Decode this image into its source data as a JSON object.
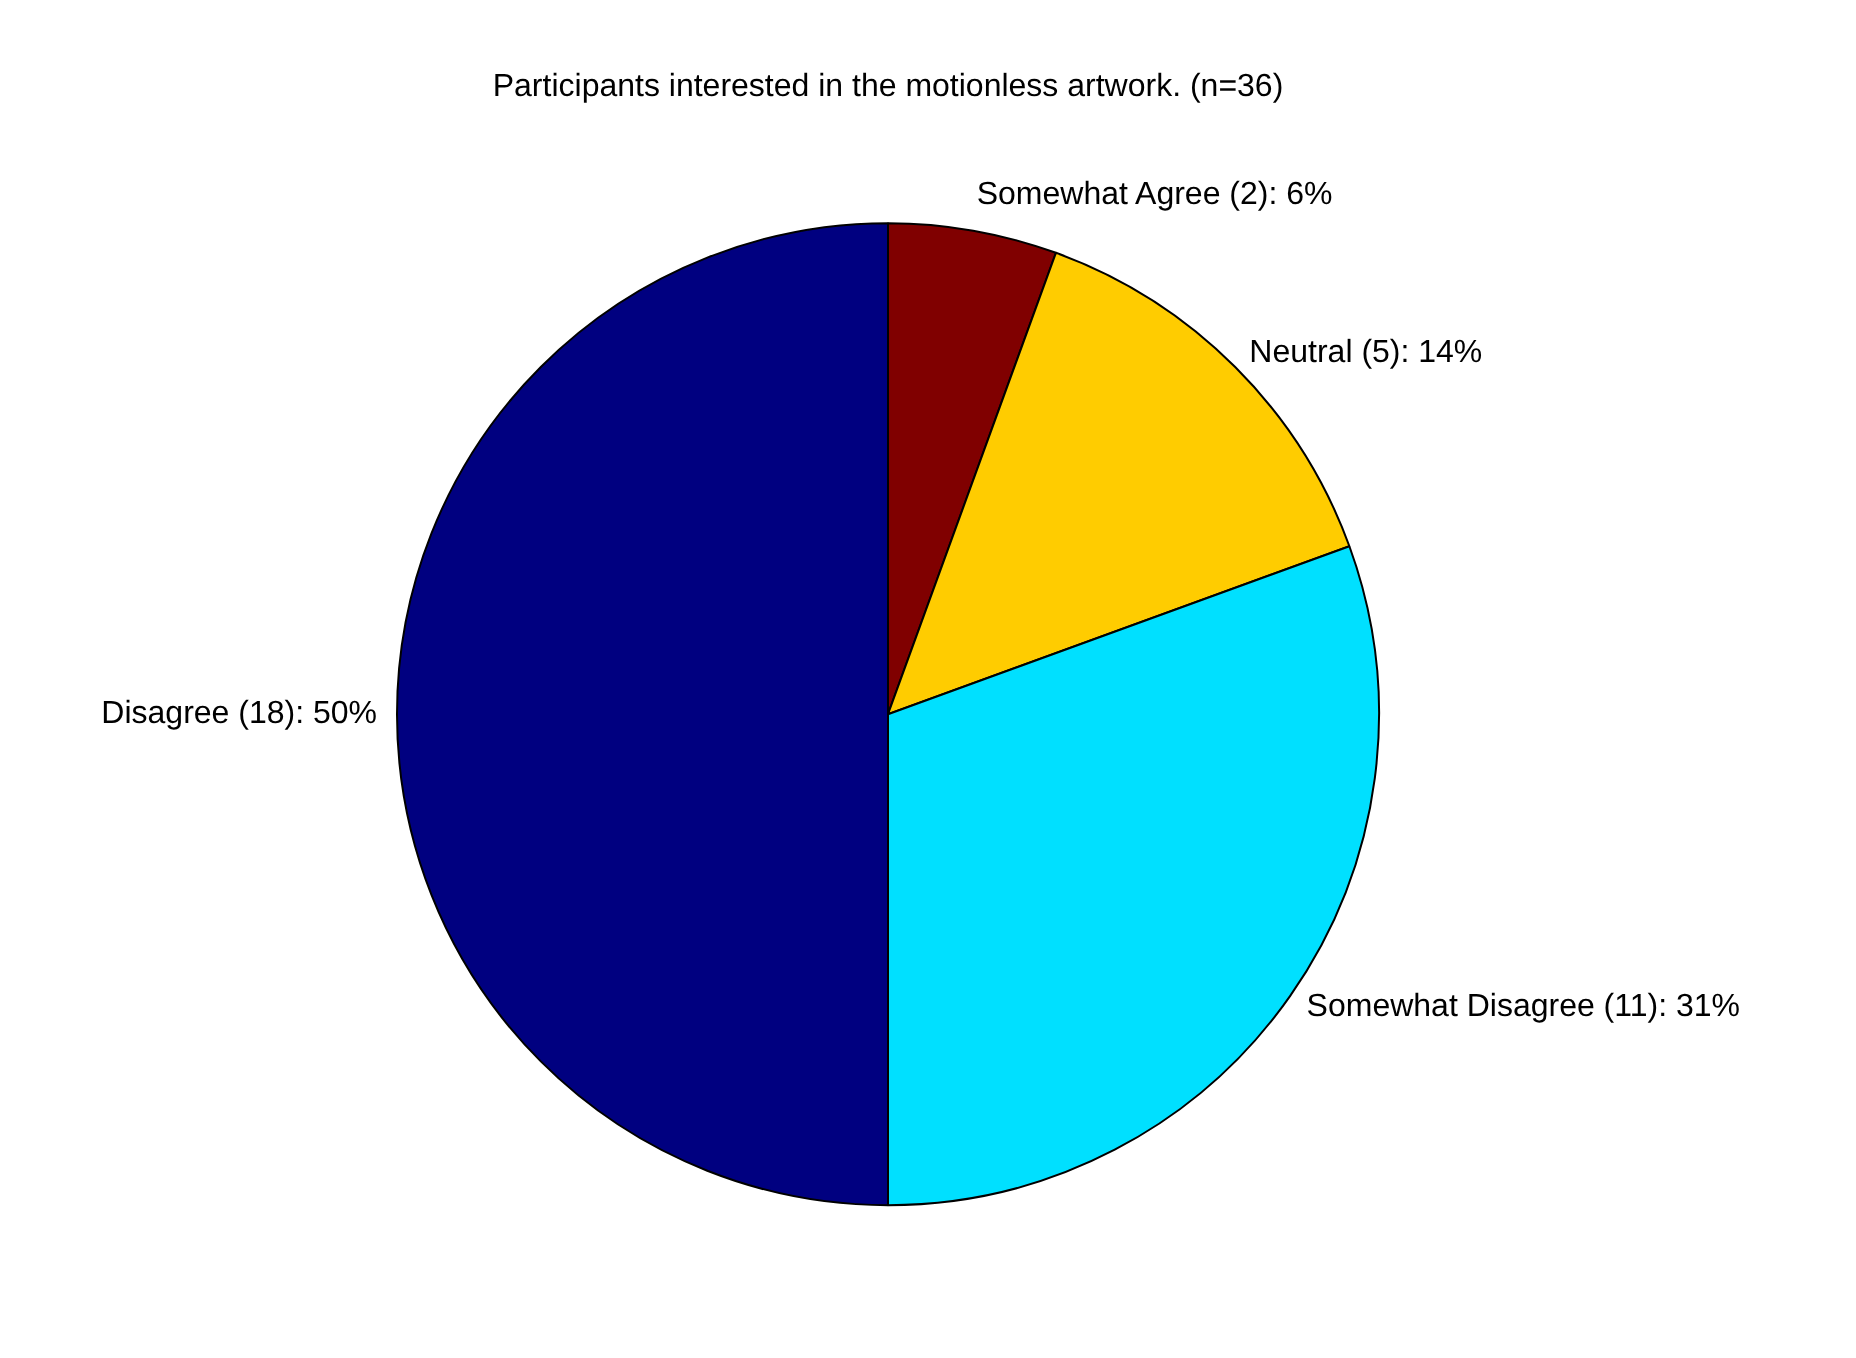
{
  "chart_data": {
    "type": "pie",
    "title": "Participants interested in the motionless artwork. (n=36)",
    "categories": [
      "Somewhat Agree",
      "Neutral",
      "Somewhat Disagree",
      "Disagree"
    ],
    "values": [
      2,
      5,
      11,
      18
    ],
    "value_labels": [
      "(2): 6%",
      "(5): 14%",
      "(11): 31%",
      "(18): 50%"
    ],
    "colors": [
      "#800000",
      "#ffcc00",
      "#00e0ff",
      "#000080"
    ],
    "legend": false
  }
}
